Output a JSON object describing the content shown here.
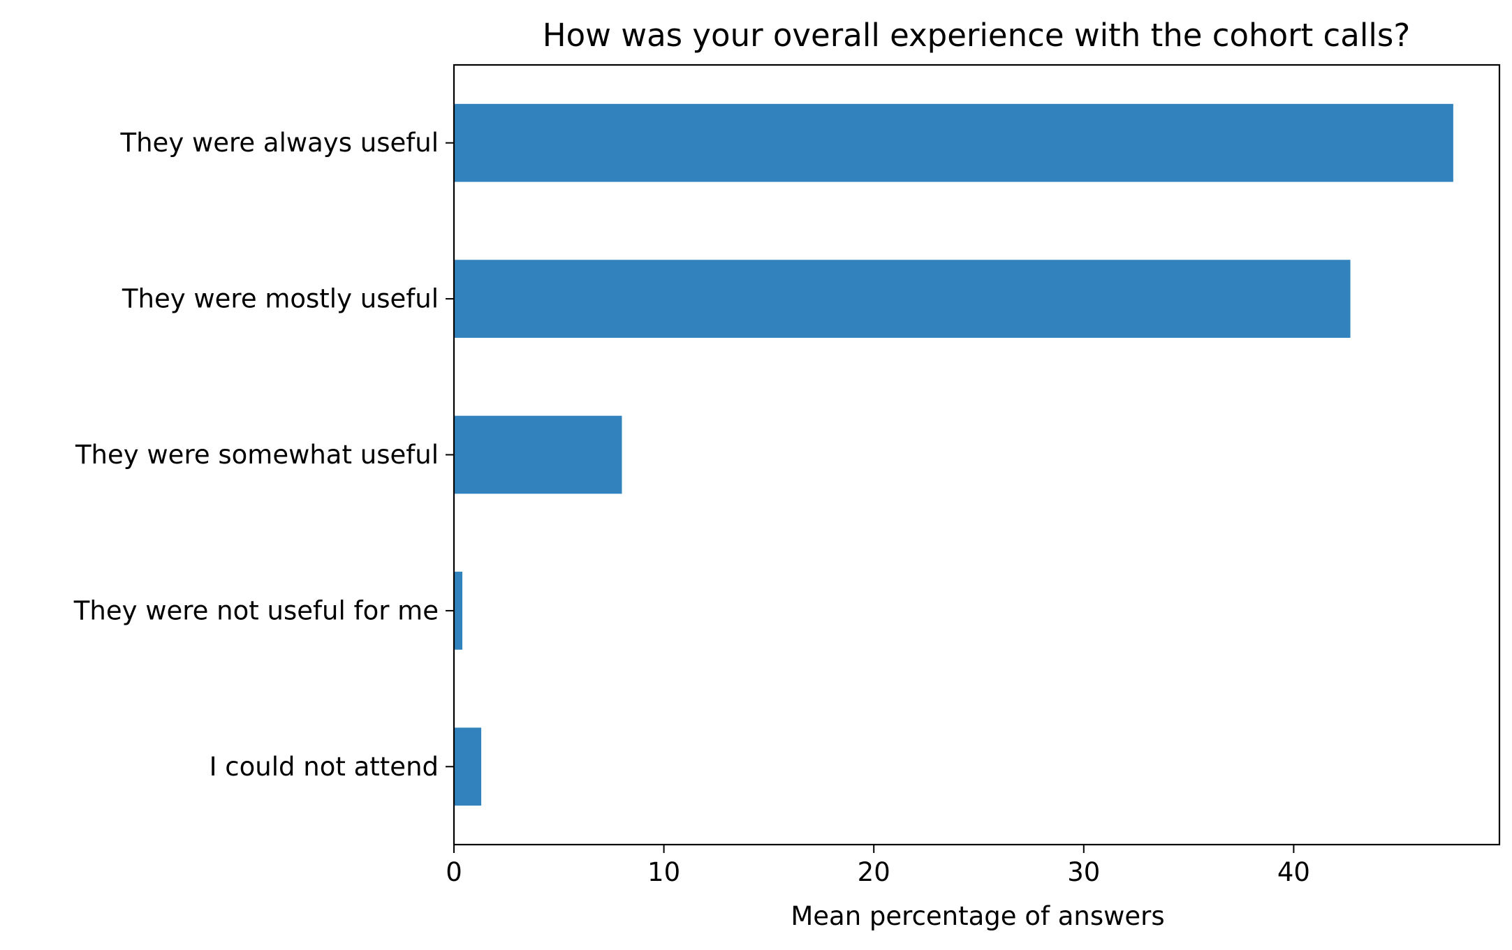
{
  "chart_data": {
    "type": "bar",
    "orientation": "horizontal",
    "title": "How was your overall experience with the cohort calls?",
    "xlabel": "Mean percentage of answers",
    "ylabel": "",
    "categories": [
      "They were always useful",
      "They were mostly useful",
      "They were somewhat useful",
      "They were not useful for me",
      "I could not attend"
    ],
    "values": [
      47.6,
      42.7,
      8.0,
      0.4,
      1.3
    ],
    "xlim": [
      0,
      49.8
    ],
    "xticks": [
      0,
      10,
      20,
      30,
      40
    ],
    "grid": false,
    "legend": "none",
    "bar_color": "#3182bd"
  }
}
